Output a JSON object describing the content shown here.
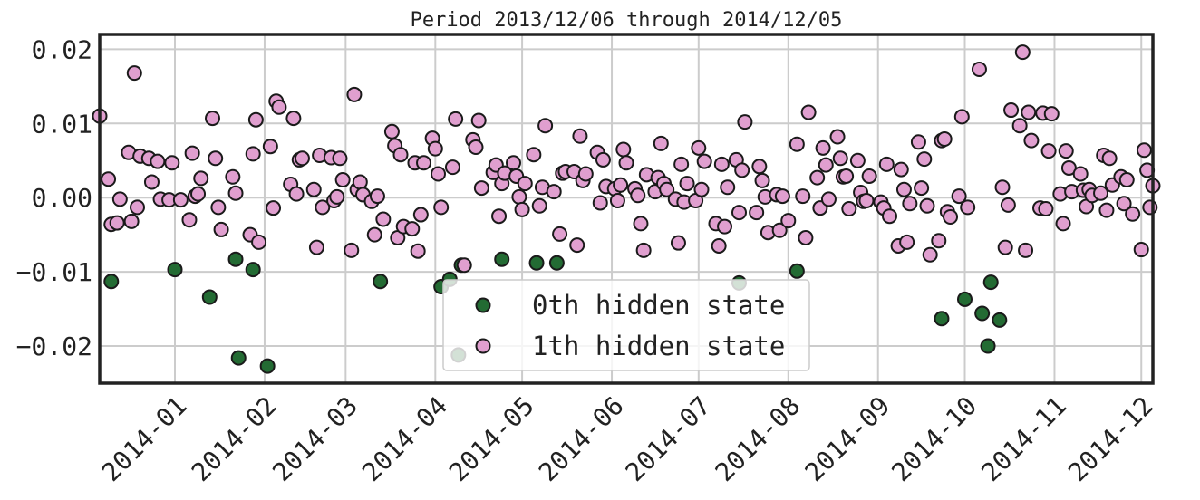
{
  "chart_data": {
    "type": "scatter",
    "title": "Period 2013/12/06 through 2014/12/05",
    "xlabel": "",
    "ylabel": "",
    "xlim": [
      "2013-12-06",
      "2014-12-05"
    ],
    "ylim": [
      -0.025,
      0.022
    ],
    "yticks": [
      0.02,
      0.01,
      0.0,
      -0.01,
      -0.02
    ],
    "ytick_labels": [
      "0.02",
      "0.01",
      "0.00",
      "−0.01",
      "−0.02"
    ],
    "xticks": [
      "2014-01-01",
      "2014-02-01",
      "2014-03-01",
      "2014-04-01",
      "2014-05-01",
      "2014-06-01",
      "2014-07-01",
      "2014-08-01",
      "2014-09-01",
      "2014-10-01",
      "2014-11-01",
      "2014-12-01"
    ],
    "xtick_labels": [
      "2014-01",
      "2014-02",
      "2014-03",
      "2014-04",
      "2014-05",
      "2014-06",
      "2014-07",
      "2014-08",
      "2014-09",
      "2014-10",
      "2014-11",
      "2014-12"
    ],
    "grid": true,
    "legend_position": "bottom-center",
    "series": [
      {
        "name": "0th hidden state",
        "color": "#236b33",
        "points": [
          [
            "2013-12-10",
            -0.0113
          ],
          [
            "2014-01-01",
            -0.0097
          ],
          [
            "2014-01-13",
            -0.0134
          ],
          [
            "2014-01-22",
            -0.0083
          ],
          [
            "2014-01-23",
            -0.0216
          ],
          [
            "2014-01-28",
            -0.0097
          ],
          [
            "2014-02-02",
            -0.0227
          ],
          [
            "2014-03-13",
            -0.0113
          ],
          [
            "2014-04-03",
            -0.012
          ],
          [
            "2014-04-06",
            -0.011
          ],
          [
            "2014-04-09",
            -0.0212
          ],
          [
            "2014-04-10",
            -0.0091
          ],
          [
            "2014-04-24",
            -0.0083
          ],
          [
            "2014-05-06",
            -0.0088
          ],
          [
            "2014-05-13",
            -0.0088
          ],
          [
            "2014-07-15",
            -0.0115
          ],
          [
            "2014-08-04",
            -0.0099
          ],
          [
            "2014-09-23",
            -0.0163
          ],
          [
            "2014-10-01",
            -0.0137
          ],
          [
            "2014-10-07",
            -0.0156
          ],
          [
            "2014-10-09",
            -0.02
          ],
          [
            "2014-10-10",
            -0.0114
          ],
          [
            "2014-10-13",
            -0.0165
          ]
        ]
      },
      {
        "name": "1th hidden state",
        "color": "#e09fcf",
        "points": [
          [
            "2013-12-06",
            0.011
          ],
          [
            "2013-12-09",
            0.0025
          ],
          [
            "2013-12-10",
            -0.0036
          ],
          [
            "2013-12-12",
            -0.0034
          ],
          [
            "2013-12-13",
            -0.0002
          ],
          [
            "2013-12-16",
            0.0061
          ],
          [
            "2013-12-17",
            -0.0032
          ],
          [
            "2013-12-18",
            0.0168
          ],
          [
            "2013-12-19",
            -0.0013
          ],
          [
            "2013-12-20",
            0.0056
          ],
          [
            "2013-12-23",
            0.0053
          ],
          [
            "2013-12-24",
            0.0021
          ],
          [
            "2013-12-26",
            0.0049
          ],
          [
            "2013-12-27",
            -0.0002
          ],
          [
            "2013-12-30",
            -0.0003
          ],
          [
            "2013-12-31",
            0.0047
          ],
          [
            "2014-01-03",
            -0.0003
          ],
          [
            "2014-01-06",
            -0.003
          ],
          [
            "2014-01-07",
            0.006
          ],
          [
            "2014-01-08",
            0.0002
          ],
          [
            "2014-01-09",
            0.0005
          ],
          [
            "2014-01-10",
            0.0026
          ],
          [
            "2014-01-14",
            0.0107
          ],
          [
            "2014-01-15",
            0.0053
          ],
          [
            "2014-01-16",
            -0.0013
          ],
          [
            "2014-01-17",
            -0.0043
          ],
          [
            "2014-01-21",
            0.0028
          ],
          [
            "2014-01-22",
            0.0006
          ],
          [
            "2014-01-27",
            -0.005
          ],
          [
            "2014-01-28",
            0.0059
          ],
          [
            "2014-01-29",
            0.0105
          ],
          [
            "2014-01-30",
            -0.006
          ],
          [
            "2014-02-03",
            0.0069
          ],
          [
            "2014-02-04",
            -0.0014
          ],
          [
            "2014-02-05",
            0.013
          ],
          [
            "2014-02-06",
            0.0122
          ],
          [
            "2014-02-10",
            0.0018
          ],
          [
            "2014-02-11",
            0.0107
          ],
          [
            "2014-02-12",
            0.0005
          ],
          [
            "2014-02-13",
            0.0051
          ],
          [
            "2014-02-14",
            0.0053
          ],
          [
            "2014-02-18",
            0.0011
          ],
          [
            "2014-02-19",
            -0.0067
          ],
          [
            "2014-02-20",
            0.0057
          ],
          [
            "2014-02-21",
            -0.0013
          ],
          [
            "2014-02-24",
            0.0054
          ],
          [
            "2014-02-25",
            -0.0004
          ],
          [
            "2014-02-26",
            0.0001
          ],
          [
            "2014-02-27",
            0.0053
          ],
          [
            "2014-02-28",
            0.0024
          ],
          [
            "2014-03-03",
            -0.0071
          ],
          [
            "2014-03-04",
            0.0139
          ],
          [
            "2014-03-05",
            0.0011
          ],
          [
            "2014-03-06",
            0.0021
          ],
          [
            "2014-03-07",
            0.0004
          ],
          [
            "2014-03-10",
            -0.0005
          ],
          [
            "2014-03-11",
            -0.005
          ],
          [
            "2014-03-12",
            0.0002
          ],
          [
            "2014-03-14",
            -0.0029
          ],
          [
            "2014-03-17",
            0.0089
          ],
          [
            "2014-03-18",
            0.007
          ],
          [
            "2014-03-19",
            -0.0054
          ],
          [
            "2014-03-20",
            0.0058
          ],
          [
            "2014-03-21",
            -0.0039
          ],
          [
            "2014-03-24",
            -0.0042
          ],
          [
            "2014-03-25",
            0.0047
          ],
          [
            "2014-03-26",
            -0.0072
          ],
          [
            "2014-03-27",
            -0.0023
          ],
          [
            "2014-03-28",
            0.0047
          ],
          [
            "2014-03-31",
            0.008
          ],
          [
            "2014-04-01",
            0.0066
          ],
          [
            "2014-04-02",
            0.0032
          ],
          [
            "2014-04-03",
            -0.0013
          ],
          [
            "2014-04-07",
            0.0041
          ],
          [
            "2014-04-08",
            0.0106
          ],
          [
            "2014-04-11",
            -0.0091
          ],
          [
            "2014-04-14",
            0.0078
          ],
          [
            "2014-04-15",
            0.0068
          ],
          [
            "2014-04-16",
            0.0104
          ],
          [
            "2014-04-17",
            0.0013
          ],
          [
            "2014-04-21",
            0.0034
          ],
          [
            "2014-04-22",
            0.0044
          ],
          [
            "2014-04-23",
            -0.0025
          ],
          [
            "2014-04-24",
            0.0019
          ],
          [
            "2014-04-25",
            0.0033
          ],
          [
            "2014-04-28",
            0.0047
          ],
          [
            "2014-04-29",
            0.0029
          ],
          [
            "2014-04-30",
            0.0001
          ],
          [
            "2014-05-01",
            -0.0016
          ],
          [
            "2014-05-02",
            0.0019
          ],
          [
            "2014-05-05",
            0.0058
          ],
          [
            "2014-05-07",
            -0.0011
          ],
          [
            "2014-05-08",
            0.0014
          ],
          [
            "2014-05-09",
            0.0097
          ],
          [
            "2014-05-12",
            0.0008
          ],
          [
            "2014-05-14",
            -0.0049
          ],
          [
            "2014-05-15",
            0.0033
          ],
          [
            "2014-05-16",
            0.0035
          ],
          [
            "2014-05-19",
            0.0035
          ],
          [
            "2014-05-20",
            -0.0064
          ],
          [
            "2014-05-21",
            0.0083
          ],
          [
            "2014-05-22",
            0.0023
          ],
          [
            "2014-05-23",
            0.0032
          ],
          [
            "2014-05-27",
            0.0061
          ],
          [
            "2014-05-28",
            -0.0007
          ],
          [
            "2014-05-29",
            0.0051
          ],
          [
            "2014-05-30",
            0.0015
          ],
          [
            "2014-06-02",
            0.0012
          ],
          [
            "2014-06-03",
            -0.0004
          ],
          [
            "2014-06-04",
            0.0017
          ],
          [
            "2014-06-05",
            0.0065
          ],
          [
            "2014-06-06",
            0.0047
          ],
          [
            "2014-06-09",
            0.0012
          ],
          [
            "2014-06-10",
            0.0003
          ],
          [
            "2014-06-11",
            -0.0035
          ],
          [
            "2014-06-12",
            -0.0071
          ],
          [
            "2014-06-13",
            0.0031
          ],
          [
            "2014-06-16",
            0.0008
          ],
          [
            "2014-06-17",
            0.0027
          ],
          [
            "2014-06-18",
            0.0073
          ],
          [
            "2014-06-19",
            0.0019
          ],
          [
            "2014-06-20",
            0.0011
          ],
          [
            "2014-06-23",
            -0.0002
          ],
          [
            "2014-06-24",
            -0.0061
          ],
          [
            "2014-06-25",
            0.0045
          ],
          [
            "2014-06-26",
            -0.0006
          ],
          [
            "2014-06-27",
            0.0019
          ],
          [
            "2014-06-30",
            -0.0004
          ],
          [
            "2014-07-01",
            0.0067
          ],
          [
            "2014-07-02",
            0.0011
          ],
          [
            "2014-07-03",
            0.0049
          ],
          [
            "2014-07-07",
            -0.0035
          ],
          [
            "2014-07-08",
            -0.0065
          ],
          [
            "2014-07-09",
            0.0045
          ],
          [
            "2014-07-10",
            -0.0039
          ],
          [
            "2014-07-11",
            0.0014
          ],
          [
            "2014-07-14",
            0.0051
          ],
          [
            "2014-07-15",
            -0.002
          ],
          [
            "2014-07-16",
            0.0037
          ],
          [
            "2014-07-17",
            0.0102
          ],
          [
            "2014-07-21",
            -0.002
          ],
          [
            "2014-07-22",
            0.0042
          ],
          [
            "2014-07-23",
            0.0023
          ],
          [
            "2014-07-24",
            0.0001
          ],
          [
            "2014-07-25",
            -0.0047
          ],
          [
            "2014-07-28",
            0.0004
          ],
          [
            "2014-07-29",
            -0.0044
          ],
          [
            "2014-07-30",
            0.0002
          ],
          [
            "2014-08-01",
            -0.0031
          ],
          [
            "2014-08-04",
            0.0072
          ],
          [
            "2014-08-06",
            0.0002
          ],
          [
            "2014-08-07",
            -0.0054
          ],
          [
            "2014-08-08",
            0.0115
          ],
          [
            "2014-08-11",
            0.0027
          ],
          [
            "2014-08-12",
            -0.0014
          ],
          [
            "2014-08-13",
            0.0067
          ],
          [
            "2014-08-14",
            0.0044
          ],
          [
            "2014-08-15",
            -0.0002
          ],
          [
            "2014-08-18",
            0.0082
          ],
          [
            "2014-08-19",
            0.0053
          ],
          [
            "2014-08-20",
            0.0028
          ],
          [
            "2014-08-21",
            0.0029
          ],
          [
            "2014-08-22",
            -0.0015
          ],
          [
            "2014-08-25",
            0.005
          ],
          [
            "2014-08-26",
            0.0007
          ],
          [
            "2014-08-27",
            -0.0005
          ],
          [
            "2014-08-28",
            -0.0004
          ],
          [
            "2014-08-29",
            0.0029
          ],
          [
            "2014-09-02",
            -0.0006
          ],
          [
            "2014-09-03",
            -0.0014
          ],
          [
            "2014-09-04",
            0.0045
          ],
          [
            "2014-09-05",
            -0.0025
          ],
          [
            "2014-09-08",
            -0.0065
          ],
          [
            "2014-09-09",
            0.0038
          ],
          [
            "2014-09-10",
            0.0011
          ],
          [
            "2014-09-11",
            -0.006
          ],
          [
            "2014-09-12",
            -0.0008
          ],
          [
            "2014-09-15",
            0.0075
          ],
          [
            "2014-09-16",
            0.0013
          ],
          [
            "2014-09-17",
            0.0052
          ],
          [
            "2014-09-18",
            -0.0011
          ],
          [
            "2014-09-19",
            -0.0077
          ],
          [
            "2014-09-22",
            -0.0058
          ],
          [
            "2014-09-23",
            0.0077
          ],
          [
            "2014-09-24",
            0.0079
          ],
          [
            "2014-09-25",
            -0.0019
          ],
          [
            "2014-09-26",
            -0.0026
          ],
          [
            "2014-09-29",
            0.0002
          ],
          [
            "2014-09-30",
            0.0109
          ],
          [
            "2014-10-02",
            -0.0013
          ],
          [
            "2014-10-06",
            0.0173
          ],
          [
            "2014-10-14",
            0.0014
          ],
          [
            "2014-10-15",
            -0.0067
          ],
          [
            "2014-10-16",
            -0.001
          ],
          [
            "2014-10-17",
            0.0118
          ],
          [
            "2014-10-20",
            0.0097
          ],
          [
            "2014-10-21",
            0.0196
          ],
          [
            "2014-10-22",
            -0.0071
          ],
          [
            "2014-10-23",
            0.0115
          ],
          [
            "2014-10-24",
            0.0077
          ],
          [
            "2014-10-27",
            -0.0014
          ],
          [
            "2014-10-28",
            0.0114
          ],
          [
            "2014-10-29",
            -0.0015
          ],
          [
            "2014-10-30",
            0.0063
          ],
          [
            "2014-10-31",
            0.0113
          ],
          [
            "2014-11-03",
            0.0005
          ],
          [
            "2014-11-04",
            -0.0035
          ],
          [
            "2014-11-05",
            0.0063
          ],
          [
            "2014-11-06",
            0.004
          ],
          [
            "2014-11-07",
            0.0008
          ],
          [
            "2014-11-10",
            0.0032
          ],
          [
            "2014-11-11",
            0.001
          ],
          [
            "2014-11-12",
            -0.0012
          ],
          [
            "2014-11-13",
            0.0011
          ],
          [
            "2014-11-14",
            0.0003
          ],
          [
            "2014-11-17",
            0.0006
          ],
          [
            "2014-11-18",
            0.0057
          ],
          [
            "2014-11-19",
            -0.0017
          ],
          [
            "2014-11-20",
            0.0053
          ],
          [
            "2014-11-21",
            0.0017
          ],
          [
            "2014-11-24",
            0.0028
          ],
          [
            "2014-11-25",
            -0.0008
          ],
          [
            "2014-11-26",
            0.0024
          ],
          [
            "2014-11-28",
            -0.0022
          ],
          [
            "2014-12-01",
            -0.007
          ],
          [
            "2014-12-02",
            0.0064
          ],
          [
            "2014-12-03",
            0.0037
          ],
          [
            "2014-12-04",
            -0.0013
          ],
          [
            "2014-12-05",
            0.0016
          ]
        ]
      }
    ]
  }
}
